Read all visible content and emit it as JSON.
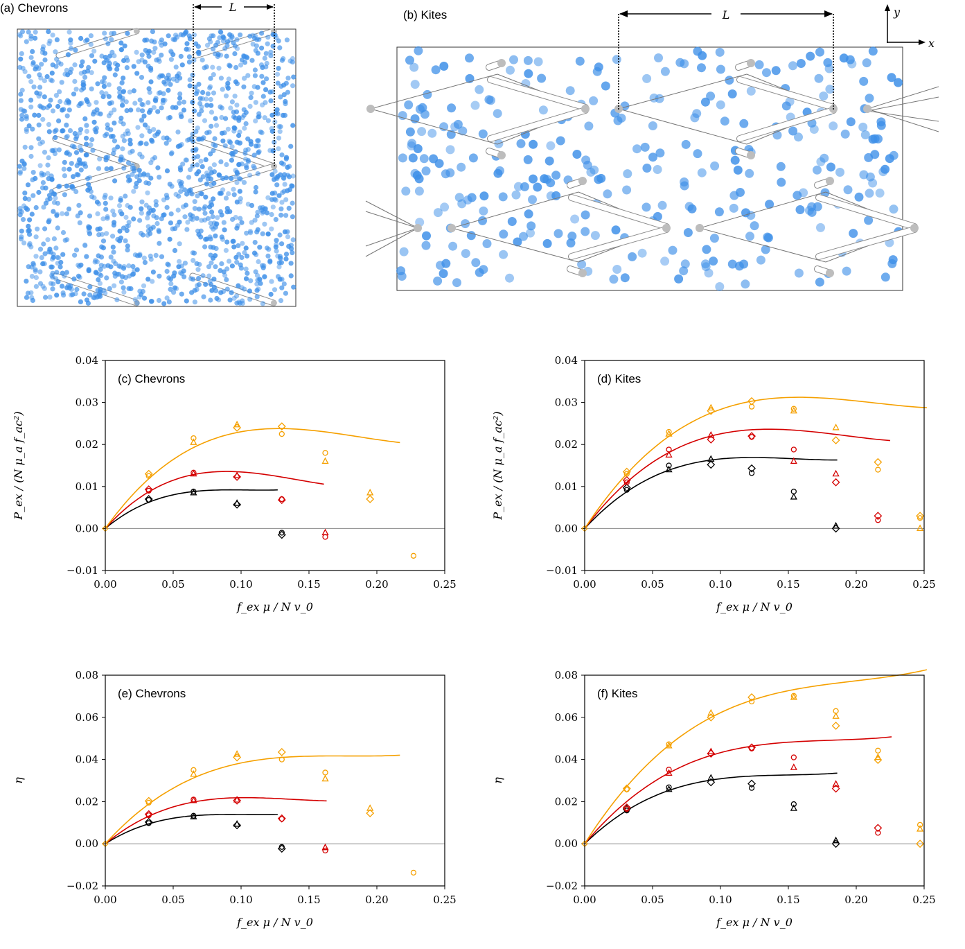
{
  "panels": {
    "a": {
      "label": "(a)  Chevrons",
      "L": "L"
    },
    "b": {
      "label": "(b)  Kites",
      "L": "L",
      "y_axis": "y",
      "x_axis": "x"
    }
  },
  "colors": {
    "black": "#000000",
    "red": "#d40000",
    "orange": "#f5a000",
    "particle": "#3d8fe8",
    "obstacle": "#bdbdbd"
  },
  "chart_data": [
    {
      "id": "c",
      "type": "scatter",
      "label": "(c)  Chevrons",
      "xlabel": "f_ex μ / N v_0",
      "ylabel": "P_ex / (N μ_a f_ac²)",
      "xlim": [
        0,
        0.25
      ],
      "ylim": [
        -0.01,
        0.04
      ],
      "xticks": [
        "0.00",
        "0.05",
        "0.10",
        "0.15",
        "0.20",
        "0.25"
      ],
      "yticks": [
        "−0.01",
        "0.00",
        "0.01",
        "0.02",
        "0.03",
        "0.04"
      ],
      "series": [
        {
          "color": "black",
          "fit_peak": [
            0.065,
            0.0088
          ],
          "fit_zero": 0.127,
          "points": [
            [
              0.032,
              0.0068
            ],
            [
              0.032,
              0.007
            ],
            [
              0.065,
              0.0085
            ],
            [
              0.065,
              0.0088
            ],
            [
              0.097,
              0.0057
            ],
            [
              0.097,
              0.006
            ],
            [
              0.13,
              -0.001
            ],
            [
              0.13,
              -0.0015
            ]
          ]
        },
        {
          "color": "red",
          "fit_peak": [
            0.074,
            0.0133
          ],
          "fit_zero": 0.161,
          "points": [
            [
              0.032,
              0.009
            ],
            [
              0.032,
              0.0093
            ],
            [
              0.065,
              0.013
            ],
            [
              0.065,
              0.0133
            ],
            [
              0.097,
              0.0123
            ],
            [
              0.097,
              0.0126
            ],
            [
              0.13,
              0.007
            ],
            [
              0.13,
              0.0068
            ],
            [
              0.162,
              -0.001
            ],
            [
              0.162,
              -0.002
            ]
          ]
        },
        {
          "color": "orange",
          "fit_peak": [
            0.103,
            0.0232
          ],
          "fit_zero": 0.217,
          "points": [
            [
              0.032,
              0.0125
            ],
            [
              0.032,
              0.013
            ],
            [
              0.065,
              0.0205
            ],
            [
              0.065,
              0.0215
            ],
            [
              0.097,
              0.024
            ],
            [
              0.097,
              0.0247
            ],
            [
              0.13,
              0.0225
            ],
            [
              0.13,
              0.0243
            ],
            [
              0.162,
              0.016
            ],
            [
              0.162,
              0.018
            ],
            [
              0.195,
              0.007
            ],
            [
              0.195,
              0.0085
            ],
            [
              0.227,
              -0.0065
            ]
          ]
        }
      ]
    },
    {
      "id": "d",
      "type": "scatter",
      "label": "(d)  Kites",
      "xlabel": "f_ex μ / N v_0",
      "ylabel": "P_ex / (N μ_a f_ac²)",
      "xlim": [
        0,
        0.25
      ],
      "ylim": [
        -0.01,
        0.04
      ],
      "xticks": [
        "0.00",
        "0.05",
        "0.10",
        "0.15",
        "0.20",
        "0.25"
      ],
      "yticks": [
        "−0.01",
        "0.00",
        "0.01",
        "0.02",
        "0.03",
        "0.04"
      ],
      "series": [
        {
          "color": "black",
          "fit_peak": [
            0.093,
            0.0163
          ],
          "fit_zero": 0.186,
          "points": [
            [
              0.031,
              0.0092
            ],
            [
              0.031,
              0.0097
            ],
            [
              0.062,
              0.014
            ],
            [
              0.062,
              0.015
            ],
            [
              0.093,
              0.0152
            ],
            [
              0.093,
              0.0165
            ],
            [
              0.123,
              0.0132
            ],
            [
              0.123,
              0.0143
            ],
            [
              0.154,
              0.0075
            ],
            [
              0.154,
              0.0088
            ],
            [
              0.185,
              0.0
            ],
            [
              0.185,
              0.0006
            ]
          ]
        },
        {
          "color": "red",
          "fit_peak": [
            0.108,
            0.023
          ],
          "fit_zero": 0.225,
          "points": [
            [
              0.031,
              0.011
            ],
            [
              0.031,
              0.0115
            ],
            [
              0.062,
              0.0175
            ],
            [
              0.062,
              0.0188
            ],
            [
              0.093,
              0.0212
            ],
            [
              0.093,
              0.0222
            ],
            [
              0.123,
              0.0218
            ],
            [
              0.123,
              0.022
            ],
            [
              0.154,
              0.016
            ],
            [
              0.154,
              0.0188
            ],
            [
              0.185,
              0.011
            ],
            [
              0.185,
              0.013
            ],
            [
              0.216,
              0.002
            ],
            [
              0.216,
              0.003
            ]
          ]
        },
        {
          "color": "orange",
          "fit_peak": [
            0.123,
            0.0303
          ],
          "fit_zero": 0.252,
          "points": [
            [
              0.031,
              0.013
            ],
            [
              0.031,
              0.0135
            ],
            [
              0.062,
              0.0225
            ],
            [
              0.062,
              0.023
            ],
            [
              0.093,
              0.028
            ],
            [
              0.093,
              0.0287
            ],
            [
              0.123,
              0.029
            ],
            [
              0.123,
              0.0303
            ],
            [
              0.154,
              0.028
            ],
            [
              0.154,
              0.0285
            ],
            [
              0.185,
              0.021
            ],
            [
              0.185,
              0.024
            ],
            [
              0.216,
              0.014
            ],
            [
              0.216,
              0.0158
            ],
            [
              0.247,
              0.0
            ],
            [
              0.247,
              0.0025
            ],
            [
              0.247,
              0.003
            ]
          ]
        }
      ]
    },
    {
      "id": "e",
      "type": "scatter",
      "label": "(e)  Chevrons",
      "xlabel": "f_ex μ / N v_0",
      "ylabel": "η",
      "xlim": [
        0,
        0.25
      ],
      "ylim": [
        -0.02,
        0.08
      ],
      "xticks": [
        "0.00",
        "0.05",
        "0.10",
        "0.15",
        "0.20",
        "0.25"
      ],
      "yticks": [
        "−0.02",
        "0.00",
        "0.02",
        "0.04",
        "0.06",
        "0.08"
      ],
      "series": [
        {
          "color": "black",
          "fit_peak": [
            0.065,
            0.0133
          ],
          "fit_zero": 0.127,
          "points": [
            [
              0.032,
              0.0098
            ],
            [
              0.032,
              0.0103
            ],
            [
              0.065,
              0.0128
            ],
            [
              0.065,
              0.0133
            ],
            [
              0.097,
              0.0088
            ],
            [
              0.097,
              0.0093
            ],
            [
              0.13,
              -0.0015
            ],
            [
              0.13,
              -0.0023
            ]
          ]
        },
        {
          "color": "red",
          "fit_peak": [
            0.08,
            0.0212
          ],
          "fit_zero": 0.163,
          "points": [
            [
              0.032,
              0.0135
            ],
            [
              0.032,
              0.014
            ],
            [
              0.065,
              0.0205
            ],
            [
              0.065,
              0.021
            ],
            [
              0.097,
              0.0205
            ],
            [
              0.097,
              0.0208
            ],
            [
              0.13,
              0.0118
            ],
            [
              0.13,
              0.012
            ],
            [
              0.162,
              -0.0018
            ],
            [
              0.162,
              -0.0032
            ]
          ]
        },
        {
          "color": "orange",
          "fit_peak": [
            0.112,
            0.0397
          ],
          "fit_zero": 0.217,
          "points": [
            [
              0.032,
              0.0195
            ],
            [
              0.032,
              0.0203
            ],
            [
              0.065,
              0.033
            ],
            [
              0.065,
              0.035
            ],
            [
              0.097,
              0.041
            ],
            [
              0.097,
              0.0425
            ],
            [
              0.13,
              0.04
            ],
            [
              0.13,
              0.0435
            ],
            [
              0.162,
              0.0308
            ],
            [
              0.162,
              0.0338
            ],
            [
              0.195,
              0.0145
            ],
            [
              0.195,
              0.0168
            ],
            [
              0.227,
              -0.0137
            ]
          ]
        }
      ]
    },
    {
      "id": "f",
      "type": "scatter",
      "label": "(f)  Kites",
      "xlabel": "f_ex μ / N v_0",
      "ylabel": "η",
      "xlim": [
        0,
        0.25
      ],
      "ylim": [
        -0.02,
        0.08
      ],
      "xticks": [
        "0.00",
        "0.05",
        "0.10",
        "0.15",
        "0.20",
        "0.25"
      ],
      "yticks": [
        "−0.02",
        "0.00",
        "0.02",
        "0.04",
        "0.06",
        "0.08"
      ],
      "series": [
        {
          "color": "black",
          "fit_peak": [
            0.098,
            0.0307
          ],
          "fit_zero": 0.186,
          "points": [
            [
              0.031,
              0.0158
            ],
            [
              0.031,
              0.0165
            ],
            [
              0.062,
              0.0258
            ],
            [
              0.062,
              0.0268
            ],
            [
              0.093,
              0.0292
            ],
            [
              0.093,
              0.0312
            ],
            [
              0.123,
              0.0265
            ],
            [
              0.123,
              0.0285
            ],
            [
              0.154,
              0.0168
            ],
            [
              0.154,
              0.0188
            ],
            [
              0.185,
              0.0
            ],
            [
              0.185,
              0.0015
            ]
          ]
        },
        {
          "color": "red",
          "fit_peak": [
            0.12,
            0.046
          ],
          "fit_zero": 0.226,
          "points": [
            [
              0.031,
              0.0165
            ],
            [
              0.031,
              0.0172
            ],
            [
              0.062,
              0.0335
            ],
            [
              0.062,
              0.0352
            ],
            [
              0.093,
              0.0428
            ],
            [
              0.093,
              0.0437
            ],
            [
              0.123,
              0.0452
            ],
            [
              0.123,
              0.0457
            ],
            [
              0.154,
              0.0362
            ],
            [
              0.154,
              0.041
            ],
            [
              0.185,
              0.0262
            ],
            [
              0.185,
              0.0283
            ],
            [
              0.216,
              0.0052
            ],
            [
              0.216,
              0.0075
            ]
          ]
        },
        {
          "color": "orange",
          "fit_peak": [
            0.14,
            0.0712
          ],
          "fit_zero": 0.252,
          "points": [
            [
              0.031,
              0.0258
            ],
            [
              0.031,
              0.0262
            ],
            [
              0.062,
              0.0465
            ],
            [
              0.062,
              0.0472
            ],
            [
              0.093,
              0.06
            ],
            [
              0.093,
              0.062
            ],
            [
              0.123,
              0.0675
            ],
            [
              0.123,
              0.0695
            ],
            [
              0.154,
              0.0695
            ],
            [
              0.154,
              0.0702
            ],
            [
              0.185,
              0.056
            ],
            [
              0.185,
              0.0605
            ],
            [
              0.185,
              0.063
            ],
            [
              0.216,
              0.0398
            ],
            [
              0.216,
              0.041
            ],
            [
              0.216,
              0.0442
            ],
            [
              0.247,
              0.0
            ],
            [
              0.247,
              0.007
            ],
            [
              0.247,
              0.009
            ]
          ]
        }
      ]
    }
  ]
}
